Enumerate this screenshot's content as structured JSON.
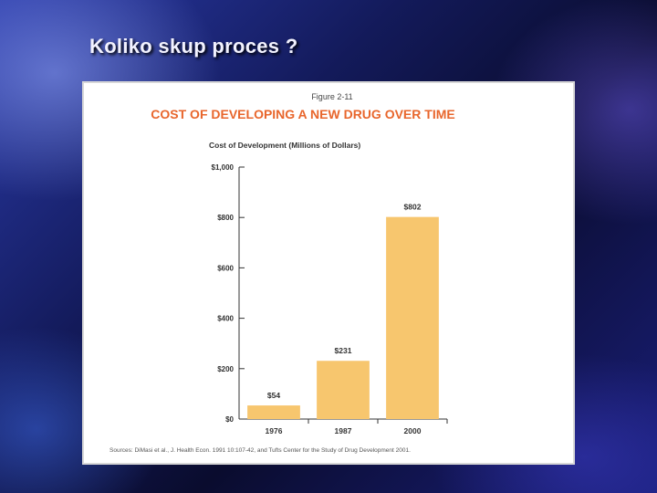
{
  "slide": {
    "title": "Koliko skup proces ?"
  },
  "figure": {
    "number": "Figure 2-11",
    "title": "COST OF DEVELOPING A NEW DRUG OVER TIME",
    "source": "Sources: DiMasi et al., J. Health Econ. 1991 10:107-42, and Tufts Center for the Study of Drug Development 2001."
  },
  "colors": {
    "bar": "#f7c66e",
    "title": "#e8662c",
    "axis": "#333333"
  },
  "chart_data": {
    "type": "bar",
    "ylabel": "Cost of Development (Millions of Dollars)",
    "categories": [
      "1976",
      "1987",
      "2000"
    ],
    "values": [
      54,
      231,
      802
    ],
    "value_labels": [
      "$54",
      "$231",
      "$802"
    ],
    "ylim": [
      0,
      1000
    ],
    "yticks": [
      0,
      200,
      400,
      600,
      800,
      1000
    ],
    "ytick_labels": [
      "$0",
      "$200",
      "$400",
      "$600",
      "$800",
      "$1,000"
    ],
    "grid": false,
    "legend": "none"
  }
}
